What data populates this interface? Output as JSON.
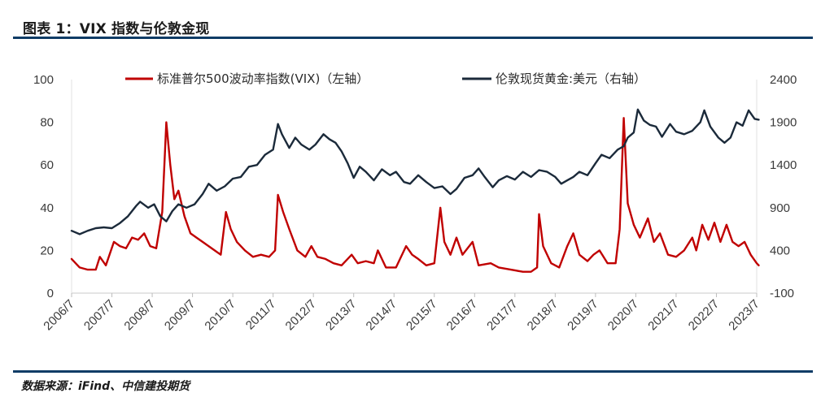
{
  "header": {
    "title": "图表 1：VIX 指数与伦敦金现"
  },
  "footer": {
    "source": "数据来源：iFind、中信建投期货"
  },
  "colors": {
    "vix": "#c00000",
    "gold": "#1b2a3a",
    "rule": "#0f3c66"
  },
  "chart_data": {
    "type": "line",
    "title": "",
    "legend_position": "top",
    "grid": false,
    "x_axis": {
      "categories": [
        "2006/7",
        "2007/7",
        "2008/7",
        "2009/7",
        "2010/7",
        "2011/7",
        "2012/7",
        "2013/7",
        "2014/7",
        "2015/7",
        "2016/7",
        "2017/7",
        "2018/7",
        "2019/7",
        "2020/7",
        "2021/7",
        "2022/7",
        "2023/7"
      ]
    },
    "y_left": {
      "min": 0,
      "max": 100,
      "ticks": [
        0,
        20,
        40,
        60,
        80,
        100
      ]
    },
    "y_right": {
      "min": -100,
      "max": 2400,
      "ticks": [
        -100,
        400,
        900,
        1400,
        1900,
        2400
      ]
    },
    "series": [
      {
        "name": "标准普尔500波动率指数(VIX)（左轴）",
        "axis": "left",
        "points": [
          [
            2006.5,
            16
          ],
          [
            2006.7,
            12
          ],
          [
            2006.9,
            11
          ],
          [
            2007.1,
            11
          ],
          [
            2007.2,
            17
          ],
          [
            2007.35,
            13
          ],
          [
            2007.55,
            24
          ],
          [
            2007.7,
            22
          ],
          [
            2007.85,
            21
          ],
          [
            2008.0,
            26
          ],
          [
            2008.15,
            25
          ],
          [
            2008.3,
            28
          ],
          [
            2008.45,
            22
          ],
          [
            2008.6,
            21
          ],
          [
            2008.75,
            38
          ],
          [
            2008.85,
            80
          ],
          [
            2008.95,
            60
          ],
          [
            2009.05,
            44
          ],
          [
            2009.15,
            48
          ],
          [
            2009.3,
            36
          ],
          [
            2009.45,
            28
          ],
          [
            2009.6,
            26
          ],
          [
            2009.75,
            24
          ],
          [
            2009.9,
            22
          ],
          [
            2010.05,
            20
          ],
          [
            2010.2,
            18
          ],
          [
            2010.33,
            38
          ],
          [
            2010.45,
            30
          ],
          [
            2010.6,
            24
          ],
          [
            2010.8,
            20
          ],
          [
            2011.0,
            17
          ],
          [
            2011.2,
            18
          ],
          [
            2011.4,
            17
          ],
          [
            2011.55,
            20
          ],
          [
            2011.62,
            46
          ],
          [
            2011.75,
            38
          ],
          [
            2011.9,
            30
          ],
          [
            2012.1,
            20
          ],
          [
            2012.3,
            17
          ],
          [
            2012.45,
            22
          ],
          [
            2012.6,
            17
          ],
          [
            2012.8,
            16
          ],
          [
            2013.0,
            14
          ],
          [
            2013.2,
            13
          ],
          [
            2013.45,
            18
          ],
          [
            2013.6,
            14
          ],
          [
            2013.8,
            15
          ],
          [
            2014.0,
            14
          ],
          [
            2014.1,
            20
          ],
          [
            2014.3,
            12
          ],
          [
            2014.55,
            12
          ],
          [
            2014.8,
            22
          ],
          [
            2014.95,
            18
          ],
          [
            2015.1,
            16
          ],
          [
            2015.3,
            13
          ],
          [
            2015.5,
            14
          ],
          [
            2015.65,
            40
          ],
          [
            2015.75,
            24
          ],
          [
            2015.9,
            18
          ],
          [
            2016.05,
            26
          ],
          [
            2016.2,
            18
          ],
          [
            2016.45,
            24
          ],
          [
            2016.6,
            13
          ],
          [
            2016.9,
            14
          ],
          [
            2017.1,
            12
          ],
          [
            2017.4,
            11
          ],
          [
            2017.7,
            10
          ],
          [
            2017.9,
            10
          ],
          [
            2018.05,
            12
          ],
          [
            2018.1,
            37
          ],
          [
            2018.2,
            22
          ],
          [
            2018.4,
            14
          ],
          [
            2018.6,
            12
          ],
          [
            2018.8,
            22
          ],
          [
            2018.95,
            28
          ],
          [
            2019.1,
            18
          ],
          [
            2019.3,
            15
          ],
          [
            2019.45,
            18
          ],
          [
            2019.6,
            20
          ],
          [
            2019.8,
            14
          ],
          [
            2020.0,
            14
          ],
          [
            2020.1,
            30
          ],
          [
            2020.2,
            82
          ],
          [
            2020.3,
            42
          ],
          [
            2020.45,
            32
          ],
          [
            2020.6,
            26
          ],
          [
            2020.8,
            35
          ],
          [
            2020.95,
            24
          ],
          [
            2021.1,
            28
          ],
          [
            2021.3,
            18
          ],
          [
            2021.5,
            17
          ],
          [
            2021.7,
            20
          ],
          [
            2021.9,
            26
          ],
          [
            2022.0,
            20
          ],
          [
            2022.15,
            32
          ],
          [
            2022.3,
            25
          ],
          [
            2022.45,
            33
          ],
          [
            2022.6,
            24
          ],
          [
            2022.75,
            32
          ],
          [
            2022.9,
            24
          ],
          [
            2023.05,
            22
          ],
          [
            2023.2,
            24
          ],
          [
            2023.35,
            18
          ],
          [
            2023.5,
            14
          ],
          [
            2023.55,
            13
          ]
        ]
      },
      {
        "name": "伦敦现货黄金:美元（右轴）",
        "axis": "right",
        "points": [
          [
            2006.5,
            630
          ],
          [
            2006.7,
            590
          ],
          [
            2006.9,
            630
          ],
          [
            2007.1,
            660
          ],
          [
            2007.3,
            670
          ],
          [
            2007.5,
            660
          ],
          [
            2007.7,
            720
          ],
          [
            2007.9,
            800
          ],
          [
            2008.1,
            920
          ],
          [
            2008.2,
            970
          ],
          [
            2008.4,
            900
          ],
          [
            2008.55,
            940
          ],
          [
            2008.7,
            800
          ],
          [
            2008.85,
            740
          ],
          [
            2009.0,
            860
          ],
          [
            2009.15,
            940
          ],
          [
            2009.35,
            900
          ],
          [
            2009.55,
            940
          ],
          [
            2009.75,
            1060
          ],
          [
            2009.9,
            1180
          ],
          [
            2010.1,
            1100
          ],
          [
            2010.3,
            1150
          ],
          [
            2010.5,
            1240
          ],
          [
            2010.7,
            1260
          ],
          [
            2010.9,
            1380
          ],
          [
            2011.1,
            1400
          ],
          [
            2011.3,
            1520
          ],
          [
            2011.5,
            1580
          ],
          [
            2011.62,
            1880
          ],
          [
            2011.72,
            1760
          ],
          [
            2011.9,
            1600
          ],
          [
            2012.05,
            1720
          ],
          [
            2012.2,
            1640
          ],
          [
            2012.4,
            1580
          ],
          [
            2012.55,
            1640
          ],
          [
            2012.75,
            1760
          ],
          [
            2012.9,
            1700
          ],
          [
            2013.05,
            1660
          ],
          [
            2013.2,
            1560
          ],
          [
            2013.35,
            1420
          ],
          [
            2013.5,
            1250
          ],
          [
            2013.65,
            1380
          ],
          [
            2013.8,
            1320
          ],
          [
            2014.0,
            1220
          ],
          [
            2014.2,
            1350
          ],
          [
            2014.4,
            1280
          ],
          [
            2014.55,
            1320
          ],
          [
            2014.75,
            1200
          ],
          [
            2014.9,
            1180
          ],
          [
            2015.1,
            1280
          ],
          [
            2015.3,
            1200
          ],
          [
            2015.5,
            1130
          ],
          [
            2015.7,
            1150
          ],
          [
            2015.9,
            1060
          ],
          [
            2016.05,
            1120
          ],
          [
            2016.25,
            1250
          ],
          [
            2016.45,
            1280
          ],
          [
            2016.6,
            1360
          ],
          [
            2016.75,
            1260
          ],
          [
            2016.95,
            1140
          ],
          [
            2017.1,
            1220
          ],
          [
            2017.3,
            1270
          ],
          [
            2017.5,
            1230
          ],
          [
            2017.7,
            1320
          ],
          [
            2017.9,
            1260
          ],
          [
            2018.1,
            1340
          ],
          [
            2018.3,
            1320
          ],
          [
            2018.5,
            1260
          ],
          [
            2018.65,
            1180
          ],
          [
            2018.8,
            1220
          ],
          [
            2018.95,
            1260
          ],
          [
            2019.1,
            1320
          ],
          [
            2019.3,
            1280
          ],
          [
            2019.5,
            1420
          ],
          [
            2019.65,
            1520
          ],
          [
            2019.85,
            1480
          ],
          [
            2020.05,
            1580
          ],
          [
            2020.2,
            1620
          ],
          [
            2020.3,
            1720
          ],
          [
            2020.45,
            1780
          ],
          [
            2020.55,
            2050
          ],
          [
            2020.7,
            1920
          ],
          [
            2020.85,
            1870
          ],
          [
            2021.0,
            1850
          ],
          [
            2021.15,
            1730
          ],
          [
            2021.35,
            1880
          ],
          [
            2021.5,
            1790
          ],
          [
            2021.7,
            1760
          ],
          [
            2021.9,
            1800
          ],
          [
            2022.1,
            1900
          ],
          [
            2022.2,
            2040
          ],
          [
            2022.35,
            1850
          ],
          [
            2022.55,
            1720
          ],
          [
            2022.7,
            1660
          ],
          [
            2022.85,
            1720
          ],
          [
            2023.0,
            1900
          ],
          [
            2023.15,
            1860
          ],
          [
            2023.3,
            2040
          ],
          [
            2023.45,
            1940
          ],
          [
            2023.55,
            1930
          ]
        ]
      }
    ]
  }
}
